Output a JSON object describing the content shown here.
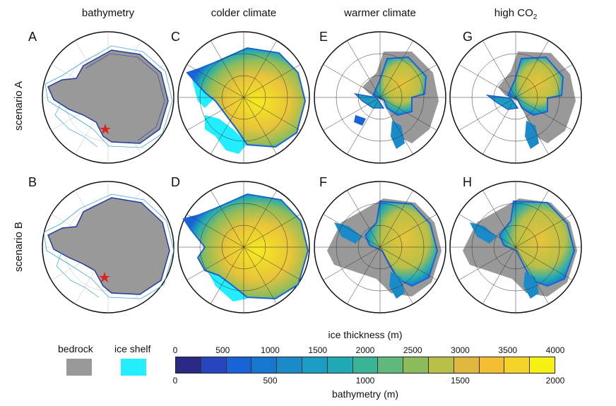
{
  "columns": [
    "bathymetry",
    "colder climate",
    "warmer climate",
    "high CO"
  ],
  "co2_subscript": "2",
  "rows": [
    "scenario A",
    "scenario B"
  ],
  "panels": [
    "A",
    "C",
    "E",
    "G",
    "B",
    "D",
    "F",
    "H"
  ],
  "legend": {
    "bedrock_label": "bedrock",
    "iceshelf_label": "ice shelf",
    "bedrock_color": "#999999",
    "iceshelf_color": "#22eeff"
  },
  "colorbar": {
    "top_title": "ice thickness (m)",
    "bottom_title": "bathymetry (m)",
    "top_ticks": [
      "0",
      "500",
      "1000",
      "1500",
      "2000",
      "2500",
      "3000",
      "3500",
      "4000"
    ],
    "bottom_ticks": [
      "0",
      "500",
      "1000",
      "1500",
      "2000"
    ],
    "colors": [
      "#2a2a86",
      "#2846c0",
      "#1a62d8",
      "#1776d0",
      "#1b8ac8",
      "#1a9cc4",
      "#20aab4",
      "#3ab494",
      "#60b87c",
      "#8cbc5c",
      "#b8c048",
      "#e0b840",
      "#f4be30",
      "#f4d426",
      "#f8f214"
    ]
  }
}
